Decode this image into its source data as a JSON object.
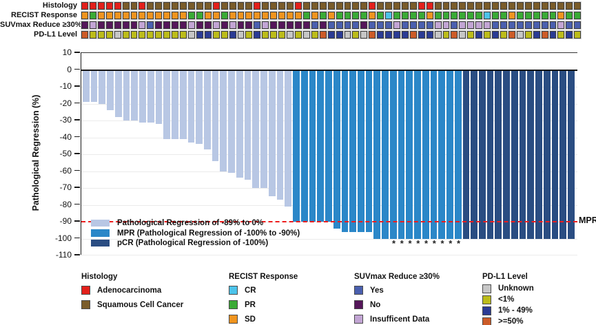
{
  "tracks": {
    "rows": [
      {
        "label": "Histology",
        "values": [
          "A",
          "A",
          "A",
          "A",
          "A",
          "S",
          "S",
          "A",
          "S",
          "S",
          "S",
          "S",
          "S",
          "S",
          "S",
          "S",
          "A",
          "S",
          "S",
          "S",
          "S",
          "A",
          "S",
          "S",
          "S",
          "S",
          "A",
          "S",
          "S",
          "S",
          "S",
          "S",
          "S",
          "S",
          "S",
          "A",
          "S",
          "S",
          "S",
          "S",
          "S",
          "A",
          "A",
          "S",
          "S",
          "S",
          "S",
          "S",
          "S",
          "S",
          "S",
          "S",
          "S",
          "S",
          "S",
          "S",
          "S",
          "S",
          "S",
          "S",
          "S"
        ]
      },
      {
        "label": "RECIST Response",
        "values": [
          "SD",
          "PR",
          "SD",
          "SD",
          "SD",
          "SD",
          "SD",
          "SD",
          "SD",
          "SD",
          "SD",
          "SD",
          "SD",
          "PR",
          "PR",
          "SD",
          "SD",
          "PR",
          "SD",
          "SD",
          "SD",
          "SD",
          "SD",
          "SD",
          "SD",
          "SD",
          "SD",
          "PR",
          "SD",
          "PR",
          "SD",
          "PR",
          "PR",
          "PR",
          "PR",
          "SD",
          "PR",
          "CR",
          "PR",
          "PR",
          "PR",
          "PR",
          "SD",
          "PR",
          "PR",
          "PR",
          "PR",
          "PR",
          "PR",
          "CR",
          "PR",
          "PR",
          "SD",
          "PR",
          "PR",
          "PR",
          "PR",
          "PR",
          "SD",
          "PR",
          "PR"
        ]
      },
      {
        "label": "SUVmax Reduce ≥30%",
        "values": [
          "N",
          "I",
          "N",
          "N",
          "N",
          "N",
          "N",
          "I",
          "Y",
          "N",
          "N",
          "N",
          "N",
          "I",
          "N",
          "N",
          "I",
          "N",
          "I",
          "N",
          "N",
          "Y",
          "I",
          "N",
          "N",
          "N",
          "N",
          "N",
          "Y",
          "N",
          "Y",
          "Y",
          "Y",
          "Y",
          "N",
          "Y",
          "Y",
          "Y",
          "I",
          "Y",
          "Y",
          "Y",
          "Y",
          "I",
          "I",
          "Y",
          "I",
          "I",
          "I",
          "I",
          "Y",
          "Y",
          "Y",
          "Y",
          "Y",
          "Y",
          "Y",
          "Y",
          "I",
          "Y",
          "Y"
        ]
      },
      {
        "label": "PD-L1 Level",
        "values": [
          "GE50",
          "LT1",
          "LT1",
          "LT1",
          "U",
          "LT1",
          "LT1",
          "LT1",
          "LT1",
          "LT1",
          "LT1",
          "LT1",
          "LT1",
          "U",
          "M149",
          "M149",
          "LT1",
          "LT1",
          "M149",
          "U",
          "LT1",
          "M149",
          "LT1",
          "LT1",
          "LT1",
          "U",
          "LT1",
          "U",
          "LT1",
          "GE50",
          "M149",
          "M149",
          "U",
          "LT1",
          "U",
          "GE50",
          "M149",
          "M149",
          "M149",
          "M149",
          "GE50",
          "M149",
          "M149",
          "U",
          "LT1",
          "GE50",
          "U",
          "LT1",
          "M149",
          "LT1",
          "M149",
          "LT1",
          "GE50",
          "U",
          "LT1",
          "M149",
          "GE50",
          "M149",
          "LT1",
          "M149",
          "LT1"
        ]
      }
    ],
    "code_colors": {
      "A": "#e3201b",
      "S": "#7a5c2a",
      "SD": "#f0941e",
      "PR": "#3aaa35",
      "CR": "#4cc3ea",
      "Y": "#4a5fae",
      "N": "#55165a",
      "I": "#c2a5d4",
      "U": "#c6c6c6",
      "LT1": "#bcbc1a",
      "M149": "#2b3b94",
      "GE50": "#cc5b28"
    }
  },
  "chart_data": {
    "type": "bar",
    "title": "",
    "xlabel": "",
    "ylabel": "Pathological Regression (%)",
    "ylim": [
      -110,
      10
    ],
    "yticks": [
      10,
      0,
      -10,
      -20,
      -30,
      -40,
      -50,
      -60,
      -70,
      -80,
      -90,
      -100,
      -110
    ],
    "grid": "horizontal-light",
    "values": [
      -19,
      -19,
      -20,
      -24,
      -28,
      -30,
      -30,
      -31,
      -31,
      -32,
      -41,
      -41,
      -41,
      -43,
      -44,
      -47,
      -54,
      -60,
      -61,
      -64,
      -65,
      -70,
      -70,
      -75,
      -77,
      -81,
      -90,
      -90,
      -90,
      -90,
      -90,
      -94,
      -96,
      -96,
      -96,
      -96,
      -100,
      -100,
      -100,
      -100,
      -100,
      -100,
      -100,
      -100,
      -100,
      -100,
      -100,
      -100,
      -100,
      -100,
      -100,
      -100,
      -100,
      -100,
      -100,
      -100,
      -100,
      -100,
      -100,
      -100,
      -100
    ],
    "segments": [
      {
        "group": "light",
        "count": 26
      },
      {
        "group": "mpr",
        "count": 21
      },
      {
        "group": "pcr",
        "count": 14
      }
    ],
    "bar_colors": {
      "light": "#b8c7e4",
      "mpr": "#2b87c8",
      "pcr": "#2a4d82"
    },
    "asterisk_columns": [
      39,
      40,
      41,
      42,
      43,
      44,
      45,
      46,
      47
    ],
    "asterisk_glyph": "*",
    "reference_line": {
      "value": -90,
      "label": "MPR",
      "color": "#ee1c1c",
      "style": "dashed"
    },
    "legend": [
      {
        "group": "light",
        "label": "Pathological Regression of -89% to 0%"
      },
      {
        "group": "mpr",
        "label": "MPR (Pathological Regression of -100% to -90%)"
      },
      {
        "group": "pcr",
        "label": "pCR (Pathological Regression of -100%)"
      }
    ],
    "legend_position": "bottom-left-inside"
  },
  "bottom_legend": [
    {
      "title": "Histology",
      "items": [
        {
          "label": "Adenocarcinoma",
          "code": "A"
        },
        {
          "label": "Squamous Cell Cancer",
          "code": "S"
        }
      ]
    },
    {
      "title": "RECIST Response",
      "items": [
        {
          "label": "CR",
          "code": "CR"
        },
        {
          "label": "PR",
          "code": "PR"
        },
        {
          "label": "SD",
          "code": "SD"
        }
      ]
    },
    {
      "title": "SUVmax Reduce ≥30%",
      "items": [
        {
          "label": "Yes",
          "code": "Y"
        },
        {
          "label": "No",
          "code": "N"
        },
        {
          "label": "Insufficent Data",
          "code": "I"
        }
      ]
    },
    {
      "title": "PD-L1 Level",
      "items": [
        {
          "label": "Unknown",
          "code": "U"
        },
        {
          "label": "<1%",
          "code": "LT1"
        },
        {
          "label": "1% - 49%",
          "code": "M149"
        },
        {
          "label": ">=50%",
          "code": "GE50"
        }
      ]
    }
  ]
}
